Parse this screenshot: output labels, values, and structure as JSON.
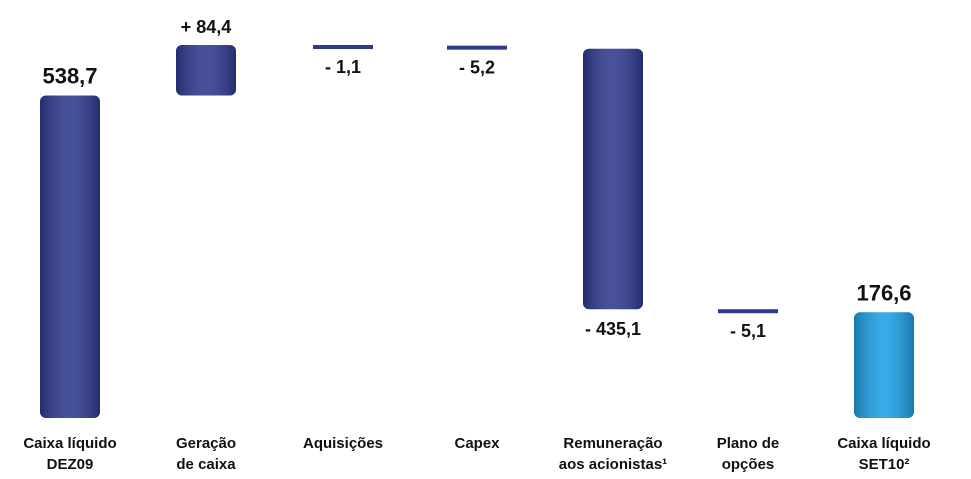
{
  "chart_data": {
    "type": "waterfall",
    "categories": [
      [
        "Caixa líquido",
        "DEZ09"
      ],
      [
        "Geração",
        "de caixa"
      ],
      [
        "Aquisições"
      ],
      [
        "Capex"
      ],
      [
        "Remuneração",
        "aos acionistas¹"
      ],
      [
        "Plano de",
        "opções"
      ],
      [
        "Caixa líquido",
        "SET10²"
      ]
    ],
    "values": [
      538.7,
      84.4,
      -1.1,
      -5.2,
      -435.1,
      -5.1,
      176.6
    ],
    "value_labels": [
      "538,7",
      "+ 84,4",
      "- 1,1",
      "- 5,2",
      "- 435,1",
      "- 5,1",
      "176,6"
    ],
    "colors": [
      "#2f3a8f",
      "#2f3a8f",
      "#2f3a8f",
      "#2f3a8f",
      "#2f3a8f",
      "#2f3a8f",
      "#1ea0e6"
    ]
  }
}
